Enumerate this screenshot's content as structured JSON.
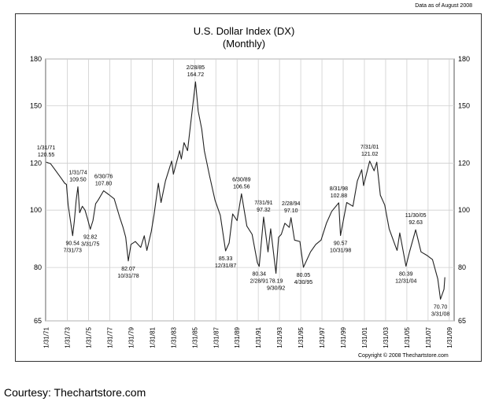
{
  "header": {
    "data_as_of": "Data as of August 2008"
  },
  "footer": {
    "copyright": "Copyright © 2008 Thechartstore.com",
    "courtesy": "Courtesy:  Thechartstore.com"
  },
  "chart_data": {
    "type": "line",
    "title": "U.S. Dollar Index (DX)",
    "subtitle": "(Monthly)",
    "xlabel": "",
    "ylabel": "",
    "y_scale": "log",
    "ylim": [
      65,
      180
    ],
    "y_ticks": [
      65,
      80,
      100,
      120,
      150,
      180
    ],
    "x_ticks": [
      "1/31/71",
      "1/31/73",
      "1/31/75",
      "1/31/77",
      "1/31/79",
      "1/31/81",
      "1/31/83",
      "1/31/85",
      "1/31/87",
      "1/31/89",
      "1/31/91",
      "1/31/93",
      "1/31/95",
      "1/31/97",
      "1/31/99",
      "1/31/01",
      "1/31/03",
      "1/31/05",
      "1/31/07",
      "1/31/09"
    ],
    "grid": true,
    "series": [
      {
        "points": [
          [
            "1971-01",
            120.55
          ],
          [
            "1971-06",
            119.8
          ],
          [
            "1971-12",
            116.5
          ],
          [
            "1972-06",
            113.2
          ],
          [
            "1972-10",
            111.0
          ],
          [
            "1972-12",
            110.5
          ],
          [
            "1973-02",
            102.0
          ],
          [
            "1973-07",
            90.54
          ],
          [
            "1973-09",
            96.0
          ],
          [
            "1973-11",
            104.0
          ],
          [
            "1974-01",
            109.5
          ],
          [
            "1974-03",
            99.0
          ],
          [
            "1974-06",
            101.5
          ],
          [
            "1974-09",
            100.0
          ],
          [
            "1974-12",
            96.5
          ],
          [
            "1975-03",
            92.82
          ],
          [
            "1975-06",
            96.0
          ],
          [
            "1975-09",
            102.5
          ],
          [
            "1975-12",
            104.0
          ],
          [
            "1976-06",
            107.8
          ],
          [
            "1976-12",
            106.2
          ],
          [
            "1977-06",
            104.5
          ],
          [
            "1977-12",
            97.5
          ],
          [
            "1978-04",
            93.5
          ],
          [
            "1978-07",
            90.0
          ],
          [
            "1978-10",
            82.07
          ],
          [
            "1979-01",
            87.5
          ],
          [
            "1979-06",
            88.5
          ],
          [
            "1979-12",
            86.5
          ],
          [
            "1980-04",
            90.5
          ],
          [
            "1980-07",
            85.5
          ],
          [
            "1980-12",
            92.0
          ],
          [
            "1981-03",
            98.0
          ],
          [
            "1981-08",
            111.0
          ],
          [
            "1981-11",
            103.0
          ],
          [
            "1982-04",
            112.0
          ],
          [
            "1982-11",
            121.0
          ],
          [
            "1983-01",
            115.0
          ],
          [
            "1983-08",
            126.0
          ],
          [
            "1983-10",
            122.0
          ],
          [
            "1984-01",
            130.0
          ],
          [
            "1984-05",
            126.0
          ],
          [
            "1984-08",
            138.0
          ],
          [
            "1985-02",
            164.72
          ],
          [
            "1985-05",
            147.0
          ],
          [
            "1985-09",
            137.0
          ],
          [
            "1985-12",
            126.0
          ],
          [
            "1986-06",
            114.0
          ],
          [
            "1986-12",
            104.0
          ],
          [
            "1987-06",
            98.0
          ],
          [
            "1987-12",
            85.33
          ],
          [
            "1988-04",
            88.0
          ],
          [
            "1988-08",
            98.5
          ],
          [
            "1989-01",
            96.0
          ],
          [
            "1989-06",
            106.56
          ],
          [
            "1989-12",
            94.0
          ],
          [
            "1990-06",
            91.0
          ],
          [
            "1990-12",
            81.5
          ],
          [
            "1991-02",
            80.34
          ],
          [
            "1991-07",
            97.32
          ],
          [
            "1991-12",
            85.0
          ],
          [
            "1992-03",
            93.0
          ],
          [
            "1992-09",
            78.19
          ],
          [
            "1992-12",
            90.0
          ],
          [
            "1993-03",
            91.0
          ],
          [
            "1993-07",
            95.0
          ],
          [
            "1993-12",
            93.5
          ],
          [
            "1994-02",
            97.1
          ],
          [
            "1994-06",
            89.0
          ],
          [
            "1994-12",
            88.5
          ],
          [
            "1995-04",
            80.05
          ],
          [
            "1995-12",
            85.0
          ],
          [
            "1996-06",
            87.5
          ],
          [
            "1996-12",
            89.0
          ],
          [
            "1997-06",
            95.0
          ],
          [
            "1997-12",
            99.5
          ],
          [
            "1998-08",
            102.88
          ],
          [
            "1998-10",
            90.57
          ],
          [
            "1999-05",
            103.0
          ],
          [
            "1999-12",
            101.5
          ],
          [
            "2000-05",
            112.0
          ],
          [
            "2000-10",
            117.0
          ],
          [
            "2000-12",
            110.0
          ],
          [
            "2001-07",
            121.02
          ],
          [
            "2001-12",
            116.5
          ],
          [
            "2002-03",
            120.5
          ],
          [
            "2002-07",
            106.0
          ],
          [
            "2002-12",
            102.0
          ],
          [
            "2003-05",
            93.0
          ],
          [
            "2003-12",
            87.0
          ],
          [
            "2004-02",
            85.5
          ],
          [
            "2004-05",
            91.5
          ],
          [
            "2004-12",
            80.39
          ],
          [
            "2005-04",
            85.0
          ],
          [
            "2005-11",
            92.63
          ],
          [
            "2006-05",
            85.0
          ],
          [
            "2006-12",
            83.8
          ],
          [
            "2007-06",
            82.5
          ],
          [
            "2007-12",
            76.5
          ],
          [
            "2008-03",
            70.7
          ],
          [
            "2008-07",
            73.5
          ],
          [
            "2008-08",
            77.0
          ]
        ]
      }
    ],
    "annotations": [
      {
        "date": "1/31/71",
        "value": "120.55",
        "x": "1971-01",
        "y": 120.55,
        "pos": "above"
      },
      {
        "date": "1/31/74",
        "value": "109.50",
        "x": "1974-01",
        "y": 109.5,
        "pos": "above"
      },
      {
        "date": "6/30/76",
        "value": "107.80",
        "x": "1976-06",
        "y": 107.8,
        "pos": "above"
      },
      {
        "date": "7/31/73",
        "value": "90.54",
        "x": "1973-07",
        "y": 90.54,
        "pos": "below"
      },
      {
        "date": "3/31/75",
        "value": "92.82",
        "x": "1975-03",
        "y": 92.82,
        "pos": "below"
      },
      {
        "date": "10/31/78",
        "value": "82.07",
        "x": "1978-10",
        "y": 82.07,
        "pos": "below"
      },
      {
        "date": "2/28/85",
        "value": "164.72",
        "x": "1985-02",
        "y": 164.72,
        "pos": "above"
      },
      {
        "date": "12/31/87",
        "value": "85.33",
        "x": "1987-12",
        "y": 85.33,
        "pos": "below"
      },
      {
        "date": "6/30/89",
        "value": "106.56",
        "x": "1989-06",
        "y": 106.56,
        "pos": "above"
      },
      {
        "date": "2/28/91",
        "value": "80.34",
        "x": "1991-02",
        "y": 80.34,
        "pos": "below"
      },
      {
        "date": "7/31/91",
        "value": "97.32",
        "x": "1991-07",
        "y": 97.32,
        "pos": "above"
      },
      {
        "date": "9/30/92",
        "value": "78.19",
        "x": "1992-09",
        "y": 78.19,
        "pos": "below"
      },
      {
        "date": "2/28/94",
        "value": "97.10",
        "x": "1994-02",
        "y": 97.1,
        "pos": "above"
      },
      {
        "date": "4/30/95",
        "value": "80.05",
        "x": "1995-04",
        "y": 80.05,
        "pos": "below"
      },
      {
        "date": "8/31/98",
        "value": "102.88",
        "x": "1998-08",
        "y": 102.88,
        "pos": "above"
      },
      {
        "date": "10/31/98",
        "value": "90.57",
        "x": "1998-10",
        "y": 90.57,
        "pos": "below"
      },
      {
        "date": "7/31/01",
        "value": "121.02",
        "x": "2001-07",
        "y": 121.02,
        "pos": "above"
      },
      {
        "date": "12/31/04",
        "value": "80.39",
        "x": "2004-12",
        "y": 80.39,
        "pos": "below"
      },
      {
        "date": "11/30/05",
        "value": "92.63",
        "x": "2005-11",
        "y": 92.63,
        "pos": "above"
      },
      {
        "date": "3/31/08",
        "value": "70.70",
        "x": "2008-03",
        "y": 70.7,
        "pos": "below"
      }
    ]
  }
}
